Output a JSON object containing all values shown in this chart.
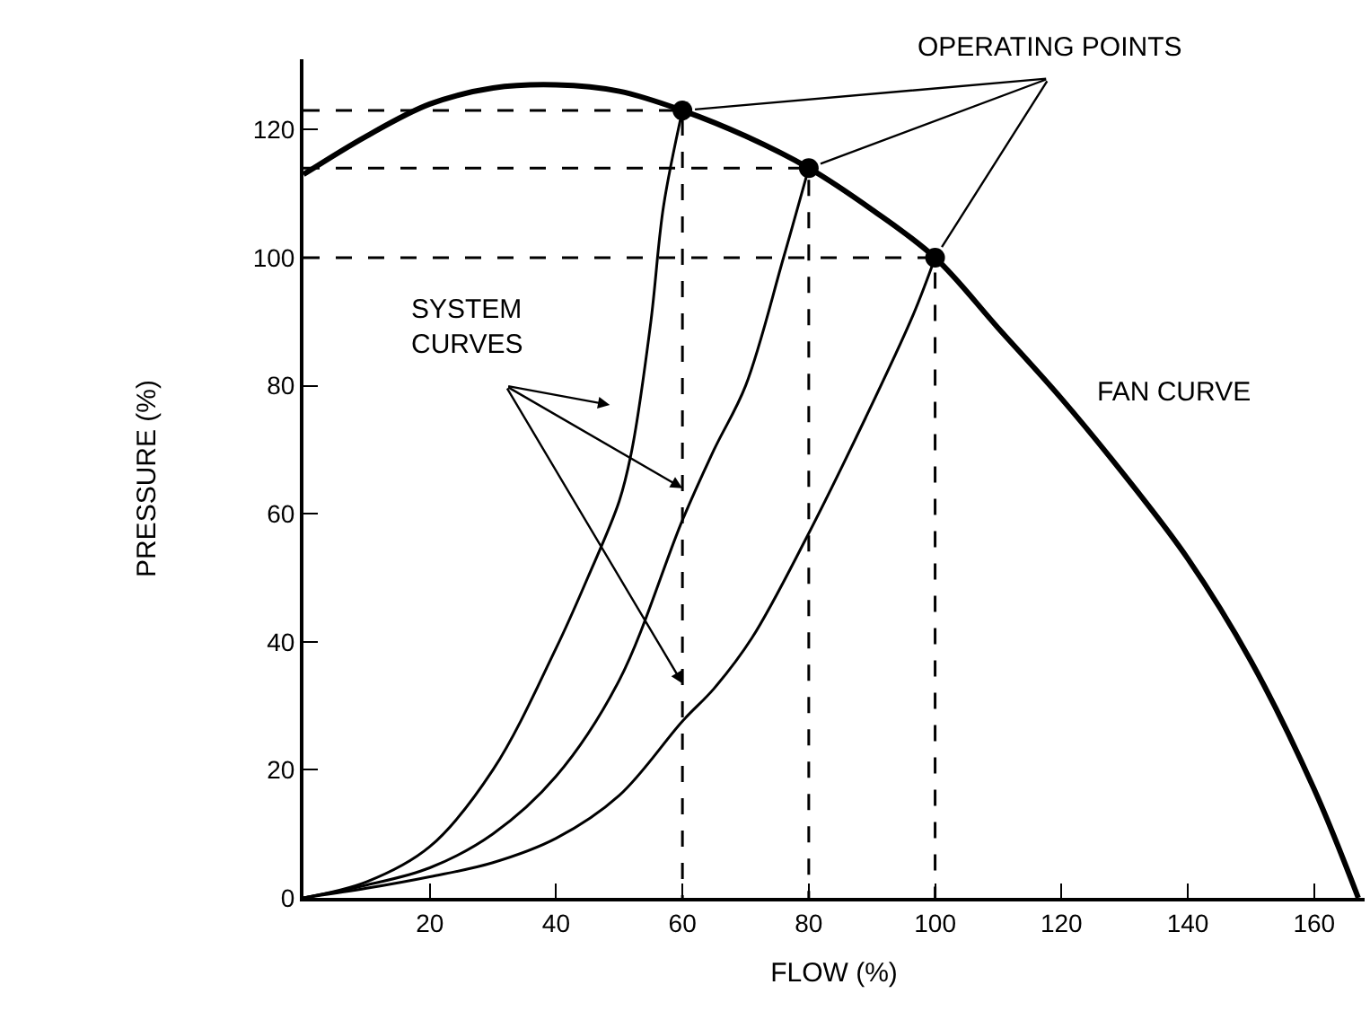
{
  "chart_data": {
    "type": "line",
    "xlabel": "FLOW (%)",
    "ylabel": "PRESSURE (%)",
    "xlim": [
      0,
      168
    ],
    "ylim": [
      0,
      131
    ],
    "xticks": [
      20,
      40,
      60,
      80,
      100,
      120,
      140,
      160
    ],
    "yticks": [
      0,
      20,
      40,
      60,
      80,
      100,
      120
    ],
    "marker": "none",
    "line_style": "solid",
    "annotations": [
      {
        "text": "SYSTEM\nCURVES",
        "x": 60,
        "y": 64
      },
      {
        "text": "OPERATING POINTS",
        "x": 80,
        "y": 114
      }
    ],
    "series": [
      {
        "name": "FAN CURVE",
        "color": "#000000",
        "x": [
          0,
          10,
          20,
          30,
          40,
          50,
          60,
          70,
          80,
          90,
          100,
          110,
          120,
          130,
          140,
          150,
          160,
          167
        ],
        "values": [
          113,
          119,
          124,
          126.5,
          127,
          126,
          123,
          119,
          114,
          107.5,
          100,
          89,
          78,
          66,
          53,
          37,
          17,
          0
        ]
      },
      {
        "color": "#000000",
        "x": [
          0,
          10,
          20,
          30,
          40,
          45,
          50,
          52,
          55,
          57,
          60
        ],
        "values": [
          0,
          2.5,
          8,
          20,
          39,
          50,
          62,
          70,
          90,
          108,
          123
        ]
      },
      {
        "color": "#000000",
        "x": [
          0,
          10,
          20,
          30,
          40,
          50,
          60,
          65,
          70,
          76,
          80
        ],
        "values": [
          0,
          2,
          4.7,
          10,
          19,
          34,
          59,
          70,
          80,
          100,
          114
        ]
      },
      {
        "color": "#000000",
        "x": [
          0,
          10,
          20,
          30,
          40,
          50,
          60,
          65,
          71,
          79.5,
          89,
          96.5,
          100
        ],
        "values": [
          0,
          1.5,
          3.3,
          5.5,
          9.3,
          16,
          27.6,
          32.7,
          40.6,
          56,
          75,
          91,
          100
        ]
      },
      {
        "color": "#000000",
        "line_style": "dashed",
        "x": [
          0,
          60,
          60
        ],
        "values": [
          123,
          123,
          0
        ]
      },
      {
        "color": "#000000",
        "line_style": "dashed",
        "x": [
          0,
          80,
          80
        ],
        "values": [
          114,
          114,
          0
        ]
      },
      {
        "color": "#000000",
        "line_style": "dashed",
        "x": [
          0,
          100,
          100
        ],
        "values": [
          100,
          100,
          0
        ]
      },
      {
        "type": "scatter",
        "marker": "circle",
        "color": "#000000",
        "x": [
          60,
          80,
          100
        ],
        "values": [
          123,
          114,
          100
        ]
      }
    ]
  }
}
